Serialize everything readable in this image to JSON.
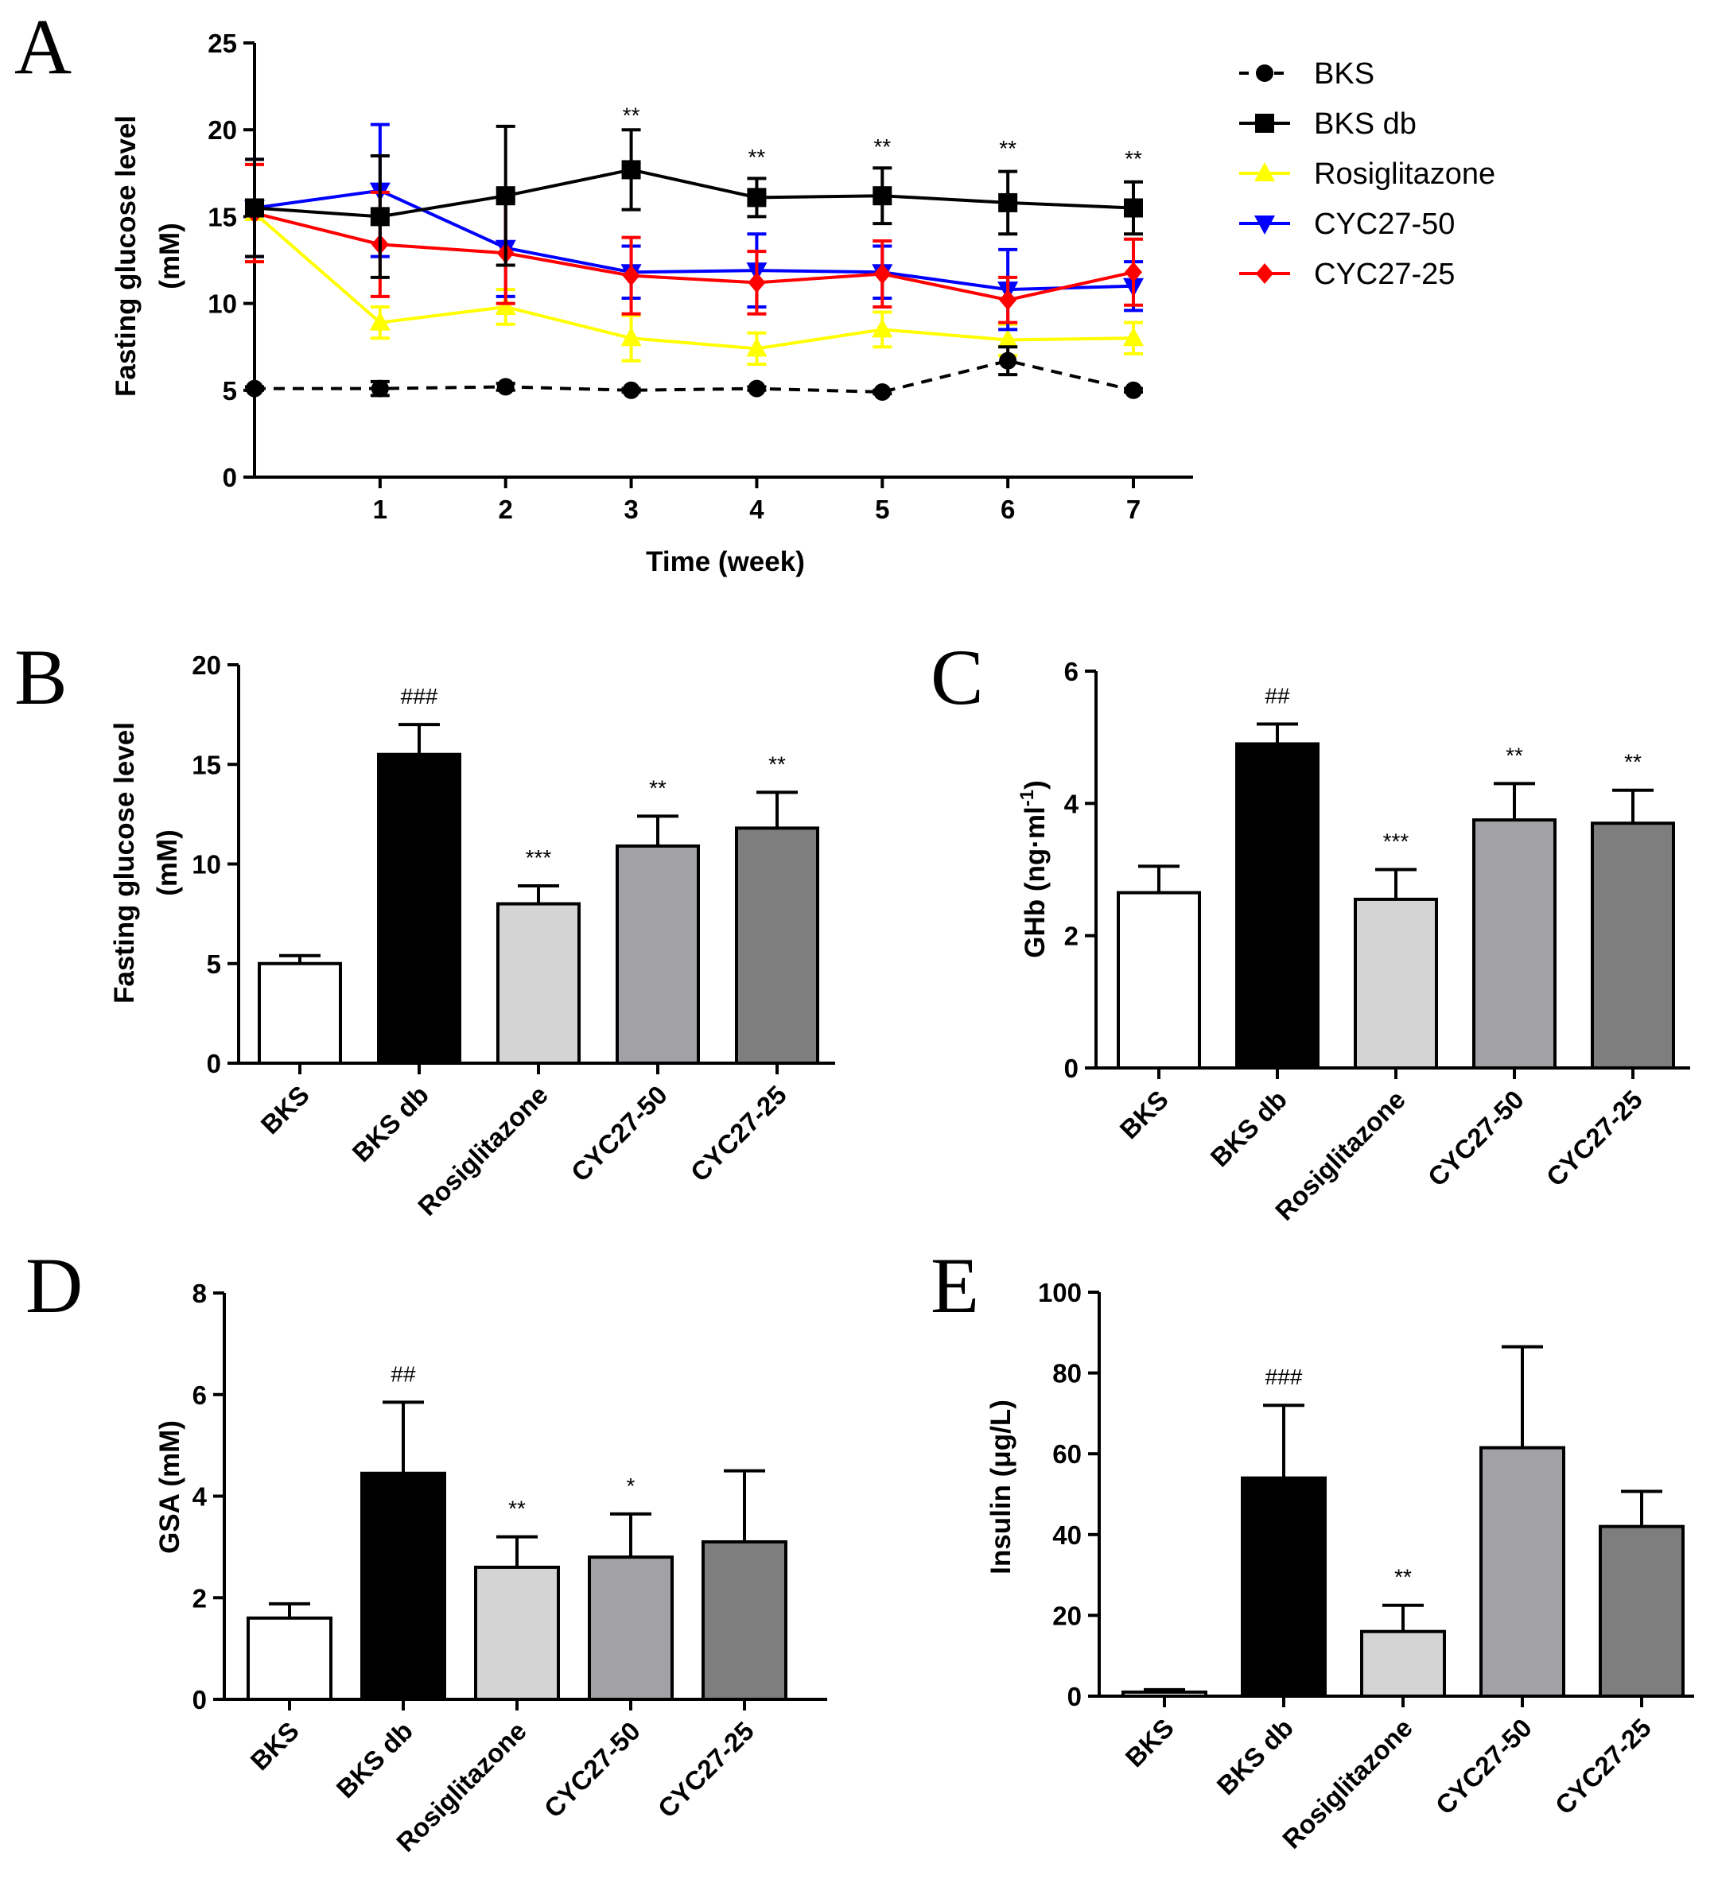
{
  "chart_data": [
    {
      "panel": "A",
      "type": "line",
      "ylabel_line1": "Fasting glucose level",
      "ylabel_line2": "(mM)",
      "xlabel": "Time (week)",
      "ylim": [
        0,
        25
      ],
      "yticks": [
        0,
        5,
        10,
        15,
        20,
        25
      ],
      "x": [
        0,
        1,
        2,
        3,
        4,
        5,
        6,
        7
      ],
      "xticks": [
        1,
        2,
        3,
        4,
        5,
        6,
        7
      ],
      "series": [
        {
          "name": "BKS",
          "color": "#000000",
          "marker": "circle",
          "dashed": true,
          "values": [
            5.1,
            5.1,
            5.2,
            5.0,
            5.1,
            4.9,
            6.7,
            5.0
          ],
          "errors": [
            0.1,
            0.4,
            0.2,
            0.1,
            0.1,
            0.1,
            0.8,
            0.1
          ]
        },
        {
          "name": "BKS db",
          "color": "#000000",
          "marker": "square",
          "dashed": false,
          "values": [
            15.5,
            15.0,
            16.2,
            17.7,
            16.1,
            16.2,
            15.8,
            15.5
          ],
          "errors": [
            2.8,
            3.5,
            4.0,
            2.3,
            1.1,
            1.6,
            1.8,
            1.5
          ]
        },
        {
          "name": "Rosiglitazone",
          "color": "#ffff00",
          "marker": "triangle-up",
          "dashed": false,
          "values": [
            15.2,
            8.9,
            9.8,
            8.0,
            7.4,
            8.5,
            7.9,
            8.0
          ],
          "errors": [
            2.8,
            0.9,
            1.0,
            1.3,
            0.9,
            1.0,
            0.9,
            0.9
          ]
        },
        {
          "name": "CYC27-50",
          "color": "#0000ff",
          "marker": "triangle-down",
          "dashed": false,
          "values": [
            15.5,
            16.5,
            13.2,
            11.8,
            11.9,
            11.8,
            10.8,
            11.0
          ],
          "errors": [
            2.8,
            3.8,
            2.8,
            1.5,
            2.1,
            1.5,
            2.3,
            1.4
          ]
        },
        {
          "name": "CYC27-25",
          "color": "#ff0000",
          "marker": "diamond",
          "dashed": false,
          "values": [
            15.2,
            13.4,
            12.9,
            11.6,
            11.2,
            11.7,
            10.2,
            11.8
          ],
          "errors": [
            2.8,
            3.0,
            2.9,
            2.2,
            1.8,
            1.9,
            1.3,
            1.9
          ]
        }
      ],
      "annotations": [
        {
          "x": 3,
          "y": 20.4,
          "text": "**"
        },
        {
          "x": 4,
          "y": 18.0,
          "text": "**"
        },
        {
          "x": 5,
          "y": 18.6,
          "text": "**"
        },
        {
          "x": 6,
          "y": 18.5,
          "text": "**"
        },
        {
          "x": 7,
          "y": 17.9,
          "text": "**"
        }
      ],
      "legend_position": "top-right"
    },
    {
      "panel": "B",
      "type": "bar",
      "ylabel_line1": "Fasting glucose level",
      "ylabel_line2": "(mM)",
      "ylim": [
        0,
        20
      ],
      "yticks": [
        0,
        5,
        10,
        15,
        20
      ],
      "categories": [
        "BKS",
        "BKS db",
        "Rosiglitazone",
        "CYC27-50",
        "CYC27-25"
      ],
      "values": [
        5.0,
        15.5,
        8.0,
        10.9,
        11.8
      ],
      "errors": [
        0.4,
        1.5,
        0.9,
        1.5,
        1.8
      ],
      "colors": [
        "#ffffff",
        "#000000",
        "#d4d4d4",
        "#a2a2a6",
        "#7e7e7e"
      ],
      "annotations": [
        "",
        "###",
        "***",
        "**",
        "**"
      ]
    },
    {
      "panel": "C",
      "type": "bar",
      "ylabel_main": "GHb (ng·ml",
      "ylabel_sup": "-1",
      "ylabel_end": ")",
      "ylim": [
        0,
        6
      ],
      "yticks": [
        0,
        2,
        4,
        6
      ],
      "categories": [
        "BKS",
        "BKS db",
        "Rosiglitazone",
        "CYC27-50",
        "CYC27-25"
      ],
      "values": [
        2.65,
        4.9,
        2.55,
        3.75,
        3.7
      ],
      "errors": [
        0.4,
        0.3,
        0.45,
        0.55,
        0.5
      ],
      "colors": [
        "#ffffff",
        "#000000",
        "#d4d4d4",
        "#a2a2a6",
        "#7e7e7e"
      ],
      "annotations": [
        "",
        "##",
        "***",
        "**",
        "**"
      ]
    },
    {
      "panel": "D",
      "type": "bar",
      "ylabel": "GSA (mM)",
      "ylim": [
        0,
        8
      ],
      "yticks": [
        0,
        2,
        4,
        6,
        8
      ],
      "categories": [
        "BKS",
        "BKS db",
        "Rosiglitazone",
        "CYC27-50",
        "CYC27-25"
      ],
      "values": [
        1.6,
        4.45,
        2.6,
        2.8,
        3.1
      ],
      "errors": [
        0.28,
        1.4,
        0.6,
        0.85,
        1.4
      ],
      "colors": [
        "#ffffff",
        "#000000",
        "#d4d4d4",
        "#a2a2a6",
        "#7e7e7e"
      ],
      "annotations": [
        "",
        "##",
        "**",
        "*",
        ""
      ]
    },
    {
      "panel": "E",
      "type": "bar",
      "ylabel": "Insulin (μg/L)",
      "ylim": [
        0,
        100
      ],
      "yticks": [
        0,
        20,
        40,
        60,
        80,
        100
      ],
      "categories": [
        "BKS",
        "BKS db",
        "Rosiglitazone",
        "CYC27-50",
        "CYC27-25"
      ],
      "values": [
        1.0,
        54.0,
        16.0,
        61.5,
        42.0
      ],
      "errors": [
        0.6,
        18.0,
        6.5,
        25.0,
        8.7
      ],
      "colors": [
        "#ffffff",
        "#000000",
        "#d4d4d4",
        "#a2a2a6",
        "#7e7e7e"
      ],
      "annotations": [
        "",
        "###",
        "**",
        "",
        ""
      ]
    }
  ]
}
